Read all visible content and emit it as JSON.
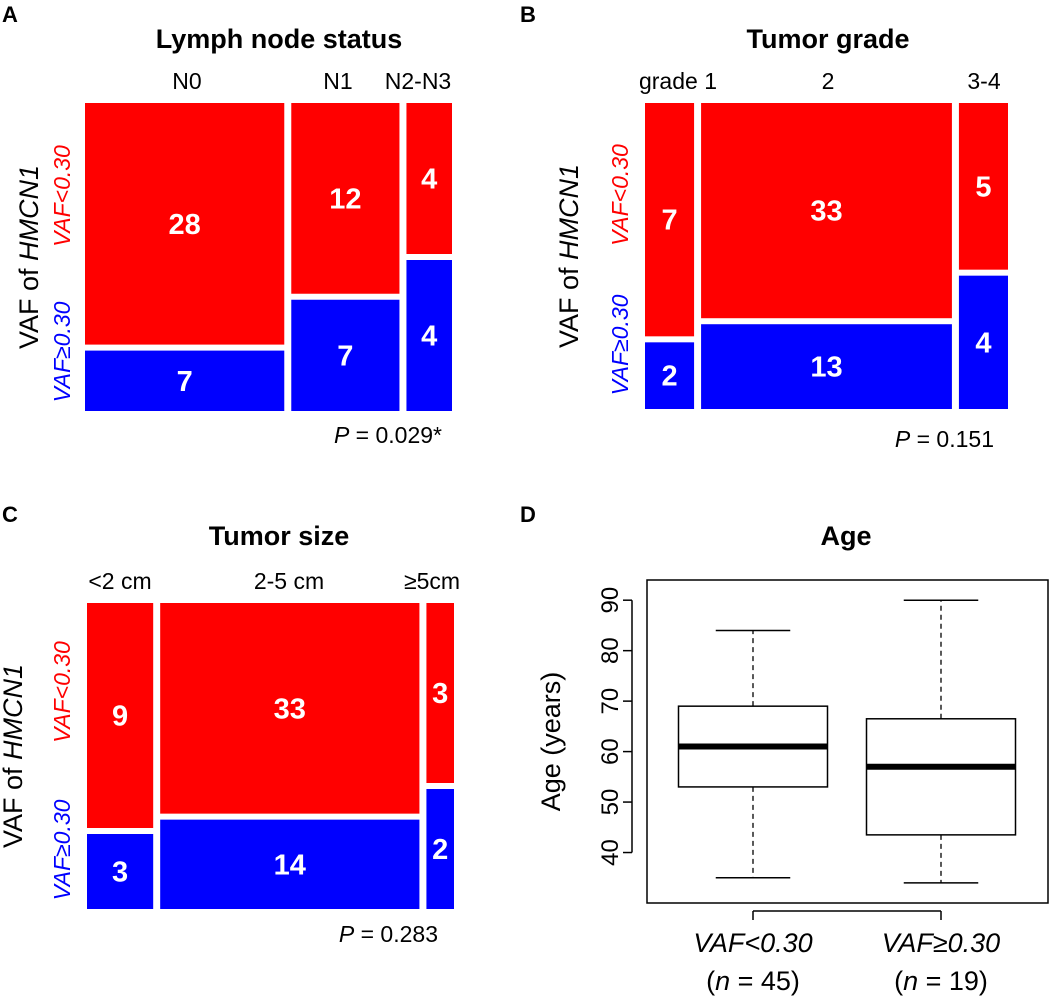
{
  "colors": {
    "low": "#ff0000",
    "high": "#0000ff",
    "num": "#ffffff",
    "box": "#000000"
  },
  "shared": {
    "ylabel_prefix": "VAF of ",
    "ylabel_gene": "HMCN1",
    "row_low": "VAF<0.30",
    "row_high": "VAF≥0.30",
    "p_prefix": "P"
  },
  "chart_data": [
    {
      "type": "mosaic",
      "panel": "A",
      "title": "Lymph node status",
      "categories": [
        "N0",
        "N1",
        "N2-N3"
      ],
      "series": [
        {
          "name": "VAF<0.30",
          "values": [
            28,
            12,
            4
          ]
        },
        {
          "name": "VAF≥0.30",
          "values": [
            7,
            7,
            4
          ]
        }
      ],
      "p_value": " = 0.029*"
    },
    {
      "type": "mosaic",
      "panel": "B",
      "title": "Tumor grade",
      "categories": [
        "grade 1",
        "2",
        "3-4"
      ],
      "series": [
        {
          "name": "VAF<0.30",
          "values": [
            7,
            33,
            5
          ]
        },
        {
          "name": "VAF≥0.30",
          "values": [
            2,
            13,
            4
          ]
        }
      ],
      "p_value": " = 0.151"
    },
    {
      "type": "mosaic",
      "panel": "C",
      "title": "Tumor size",
      "categories": [
        "<2 cm",
        "2-5 cm",
        "≥5cm"
      ],
      "series": [
        {
          "name": "VAF<0.30",
          "values": [
            9,
            33,
            3
          ]
        },
        {
          "name": "VAF≥0.30",
          "values": [
            3,
            14,
            2
          ]
        }
      ],
      "p_value": " = 0.283"
    },
    {
      "type": "box",
      "panel": "D",
      "title": "Age",
      "ylabel": "Age (years)",
      "ylim": [
        30,
        94
      ],
      "yticks": [
        40,
        50,
        60,
        70,
        80,
        90
      ],
      "groups": [
        {
          "name": "VAF<0.30",
          "n_label": "(n = 45)",
          "n_prefix": "(",
          "n_var": "n",
          "n_suffix": " = 45)",
          "min": 35,
          "q1": 53,
          "median": 61,
          "q3": 69,
          "max": 84
        },
        {
          "name": "VAF≥0.30",
          "n_label": "(n = 19)",
          "n_prefix": "(",
          "n_var": "n",
          "n_suffix": " = 19)",
          "min": 34,
          "q1": 43.5,
          "median": 57,
          "q3": 66.5,
          "max": 90
        }
      ]
    }
  ]
}
